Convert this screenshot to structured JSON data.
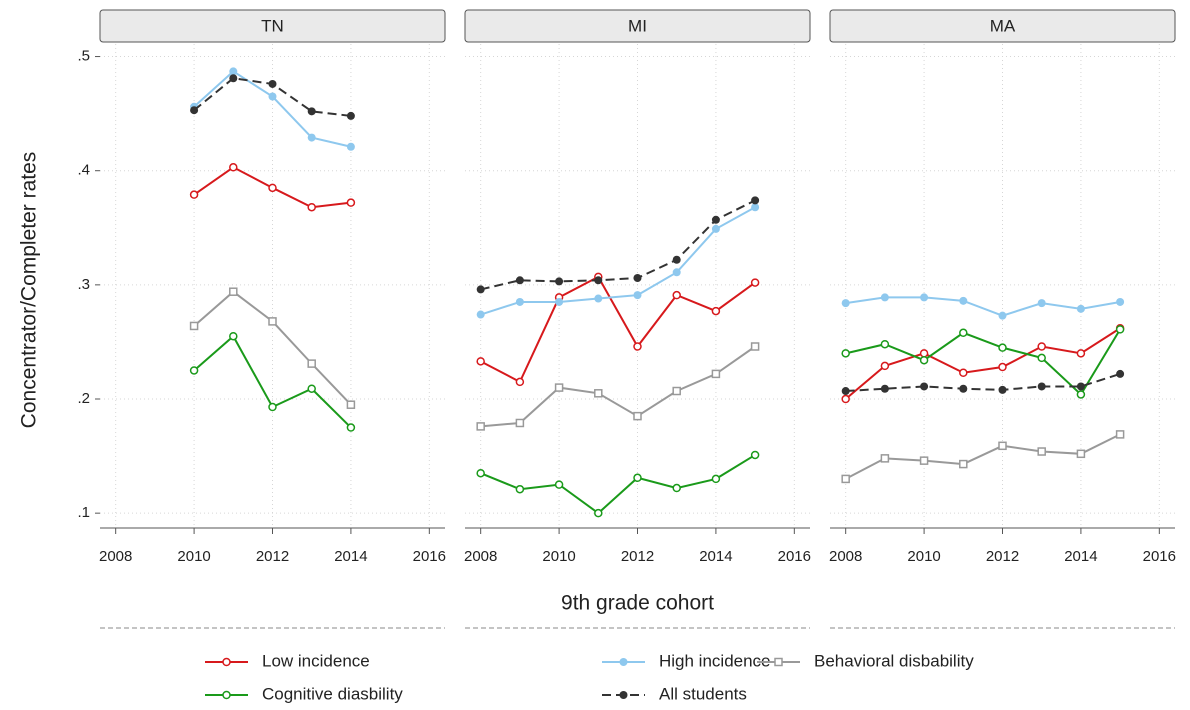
{
  "chart_data": [
    {
      "type": "line",
      "title": "TN",
      "ylabel": "Concentrator/Completer rates",
      "x": [
        2010,
        2011,
        2012,
        2013,
        2014
      ],
      "xlim": [
        2007.6,
        2016.4
      ],
      "xticks": [
        2008,
        2010,
        2012,
        2014,
        2016
      ],
      "ylim": [
        0.087,
        0.511
      ],
      "yticks": [
        {
          "value": 0.1,
          "label": ".1"
        },
        {
          "value": 0.2,
          "label": ".2"
        },
        {
          "value": 0.3,
          "label": ".3"
        },
        {
          "value": 0.4,
          "label": ".4"
        },
        {
          "value": 0.5,
          "label": ".5"
        }
      ],
      "grid": true,
      "series": [
        {
          "name": "Low incidence",
          "color": "#d7191c",
          "marker": "circle-open",
          "values": [
            0.379,
            0.403,
            0.385,
            0.368,
            0.372
          ]
        },
        {
          "name": "High incidence",
          "color": "#8ec8ee",
          "marker": "circle-filled",
          "values": [
            0.456,
            0.487,
            0.465,
            0.429,
            0.421
          ]
        },
        {
          "name": "Behavioral disbability",
          "color": "#999999",
          "marker": "square-open",
          "values": [
            0.264,
            0.294,
            0.268,
            0.231,
            0.195
          ]
        },
        {
          "name": "Cognitive diasbility",
          "color": "#1a9a1a",
          "marker": "circle-open",
          "values": [
            0.225,
            0.255,
            0.193,
            0.209,
            0.175
          ]
        },
        {
          "name": "All students",
          "color": "#333333",
          "marker": "circle-filled",
          "dashed": true,
          "values": [
            0.453,
            0.481,
            0.476,
            0.452,
            0.448
          ]
        }
      ]
    },
    {
      "type": "line",
      "title": "MI",
      "xlabel": "9th grade cohort",
      "x": [
        2008,
        2009,
        2010,
        2011,
        2012,
        2013,
        2014,
        2015
      ],
      "xlim": [
        2007.6,
        2016.4
      ],
      "xticks": [
        2008,
        2010,
        2012,
        2014,
        2016
      ],
      "ylim": [
        0.087,
        0.511
      ],
      "yticks": [
        0.1,
        0.2,
        0.3,
        0.4,
        0.5
      ],
      "grid": true,
      "series": [
        {
          "name": "Low incidence",
          "color": "#d7191c",
          "marker": "circle-open",
          "values": [
            0.233,
            0.215,
            0.289,
            0.307,
            0.246,
            0.291,
            0.277,
            0.302
          ]
        },
        {
          "name": "High incidence",
          "color": "#8ec8ee",
          "marker": "circle-filled",
          "values": [
            0.274,
            0.285,
            0.285,
            0.288,
            0.291,
            0.311,
            0.349,
            0.368
          ]
        },
        {
          "name": "Behavioral disbability",
          "color": "#999999",
          "marker": "square-open",
          "values": [
            0.176,
            0.179,
            0.21,
            0.205,
            0.185,
            0.207,
            0.222,
            0.246
          ]
        },
        {
          "name": "Cognitive diasbility",
          "color": "#1a9a1a",
          "marker": "circle-open",
          "values": [
            0.135,
            0.121,
            0.125,
            0.1,
            0.131,
            0.122,
            0.13,
            0.151
          ]
        },
        {
          "name": "All students",
          "color": "#333333",
          "marker": "circle-filled",
          "dashed": true,
          "values": [
            0.296,
            0.304,
            0.303,
            0.304,
            0.306,
            0.322,
            0.357,
            0.374
          ]
        }
      ]
    },
    {
      "type": "line",
      "title": "MA",
      "x": [
        2008,
        2009,
        2010,
        2011,
        2012,
        2013,
        2014,
        2015
      ],
      "xlim": [
        2007.6,
        2016.4
      ],
      "xticks": [
        2008,
        2010,
        2012,
        2014,
        2016
      ],
      "ylim": [
        0.087,
        0.511
      ],
      "yticks": [
        0.1,
        0.2,
        0.3,
        0.4,
        0.5
      ],
      "grid": true,
      "series": [
        {
          "name": "Low incidence",
          "color": "#d7191c",
          "marker": "circle-open",
          "values": [
            0.2,
            0.229,
            0.24,
            0.223,
            0.228,
            0.246,
            0.24,
            0.262
          ]
        },
        {
          "name": "High incidence",
          "color": "#8ec8ee",
          "marker": "circle-filled",
          "values": [
            0.284,
            0.289,
            0.289,
            0.286,
            0.273,
            0.284,
            0.279,
            0.285
          ]
        },
        {
          "name": "Behavioral disbability",
          "color": "#999999",
          "marker": "square-open",
          "values": [
            0.13,
            0.148,
            0.146,
            0.143,
            0.159,
            0.154,
            0.152,
            0.169
          ]
        },
        {
          "name": "Cognitive diasbility",
          "color": "#1a9a1a",
          "marker": "circle-open",
          "values": [
            0.24,
            0.248,
            0.234,
            0.258,
            0.245,
            0.236,
            0.204,
            0.261
          ]
        },
        {
          "name": "All students",
          "color": "#333333",
          "marker": "circle-filled",
          "dashed": true,
          "values": [
            0.207,
            0.209,
            0.211,
            0.209,
            0.208,
            0.211,
            0.211,
            0.222
          ]
        }
      ]
    }
  ]
}
